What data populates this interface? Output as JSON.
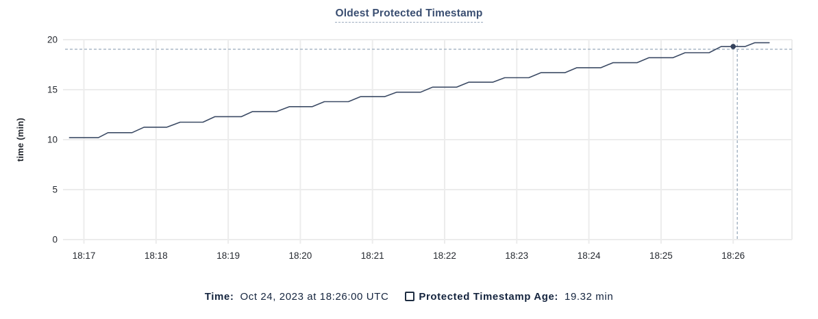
{
  "chart_data": {
    "type": "line",
    "title": "Oldest Protected Timestamp",
    "xlabel": "",
    "ylabel": "time (min)",
    "y_ticks": [
      0,
      5,
      10,
      15,
      20
    ],
    "ylim": [
      0,
      20
    ],
    "x_tick_labels": [
      "18:17",
      "18:18",
      "18:19",
      "18:20",
      "18:21",
      "18:22",
      "18:23",
      "18:24",
      "18:25",
      "18:26"
    ],
    "x_unit": "seconds after 18:17:00 UTC",
    "grid": true,
    "legend_position": "bottom",
    "series": [
      {
        "name": "Protected Timestamp Age",
        "unit": "min",
        "points": [
          [
            -12,
            10.2
          ],
          [
            12,
            10.2
          ],
          [
            20,
            10.7
          ],
          [
            40,
            10.7
          ],
          [
            50,
            11.25
          ],
          [
            69,
            11.25
          ],
          [
            80,
            11.75
          ],
          [
            99,
            11.75
          ],
          [
            109,
            12.3
          ],
          [
            131,
            12.3
          ],
          [
            140,
            12.8
          ],
          [
            160,
            12.8
          ],
          [
            171,
            13.3
          ],
          [
            190,
            13.3
          ],
          [
            200,
            13.8
          ],
          [
            220,
            13.8
          ],
          [
            230,
            14.3
          ],
          [
            250,
            14.3
          ],
          [
            260,
            14.75
          ],
          [
            280,
            14.75
          ],
          [
            290,
            15.25
          ],
          [
            310,
            15.25
          ],
          [
            320,
            15.75
          ],
          [
            340,
            15.75
          ],
          [
            350,
            16.2
          ],
          [
            370,
            16.2
          ],
          [
            380,
            16.7
          ],
          [
            400,
            16.7
          ],
          [
            410,
            17.2
          ],
          [
            430,
            17.2
          ],
          [
            440,
            17.7
          ],
          [
            460,
            17.7
          ],
          [
            470,
            18.2
          ],
          [
            490,
            18.2
          ],
          [
            500,
            18.7
          ],
          [
            520,
            18.7
          ],
          [
            530,
            19.32
          ],
          [
            550,
            19.32
          ],
          [
            558,
            19.7
          ],
          [
            570,
            19.7
          ]
        ]
      }
    ],
    "hover": {
      "point_sec": 540,
      "point_time": "18:26:00",
      "value_min": 19.32
    },
    "legend": {
      "time_label": "Time:",
      "time_value": "Oct 24, 2023 at 18:26:00 UTC",
      "series_label": "Protected Timestamp Age:",
      "series_value": "19.32 min"
    },
    "colors": {
      "line": "#3b4a64",
      "dot": "#33415c",
      "grid": "#ececec",
      "crosshair": "#a0b1c1",
      "title": "#3a4e71",
      "axis_text": "#24282f",
      "legend_text": "#14243e"
    }
  }
}
